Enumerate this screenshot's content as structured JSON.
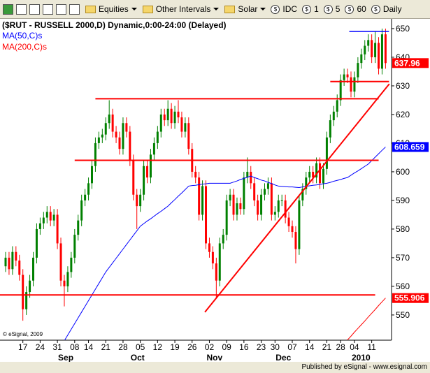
{
  "toolbar": {
    "menus": [
      "Equities",
      "Other Intervals",
      "Solar"
    ],
    "intervals": [
      "IDC",
      "1",
      "5",
      "60",
      "Daily"
    ]
  },
  "chart_data": {
    "type": "candlestick",
    "title": "($RUT - RUSSELL 2000,D) Dynamic,0:00-24:00 (Delayed)",
    "copyright": "© eSignal, 2009",
    "categories": [
      null,
      null,
      null,
      null,
      null,
      "17",
      null,
      null,
      null,
      null,
      "24",
      null,
      null,
      null,
      null,
      "31",
      null,
      null,
      null,
      null,
      "08",
      null,
      null,
      null,
      "14",
      null,
      null,
      null,
      null,
      "21",
      null,
      null,
      null,
      null,
      "28",
      null,
      null,
      null,
      null,
      "05",
      null,
      null,
      null,
      null,
      "12",
      null,
      null,
      null,
      null,
      "19",
      null,
      null,
      null,
      null,
      "26",
      null,
      null,
      null,
      null,
      "02",
      null,
      null,
      null,
      null,
      "09",
      null,
      null,
      null,
      null,
      "16",
      null,
      null,
      null,
      null,
      "23",
      null,
      null,
      null,
      "30",
      null,
      null,
      null,
      null,
      "07",
      null,
      null,
      null,
      null,
      "14",
      null,
      null,
      null,
      null,
      "21",
      null,
      null,
      null,
      "28",
      null,
      null,
      null,
      "04",
      null,
      null,
      null,
      null,
      "11",
      null,
      null,
      null,
      null
    ],
    "months": [
      {
        "label": "Sep",
        "index": 16
      },
      {
        "label": "Oct",
        "index": 37
      },
      {
        "label": "Nov",
        "index": 59
      },
      {
        "label": "Dec",
        "index": 79
      },
      {
        "label": "2010",
        "index": 101
      }
    ],
    "open": [
      567,
      570,
      566,
      572,
      569,
      564,
      552,
      558,
      562,
      570,
      580,
      582,
      584,
      586,
      583,
      585,
      575,
      562,
      560,
      565,
      570,
      578,
      583,
      590,
      592,
      596,
      602,
      610,
      612,
      613,
      617,
      620,
      614,
      612,
      608,
      617,
      614,
      604,
      592,
      588,
      592,
      602,
      598,
      606,
      610,
      614,
      620,
      618,
      622,
      617,
      621,
      619,
      614,
      617,
      608,
      600,
      598,
      585,
      595,
      575,
      572,
      568,
      562,
      575,
      578,
      590,
      592,
      585,
      589,
      587,
      598,
      600,
      596,
      590,
      585,
      592,
      594,
      596,
      585,
      586,
      590,
      590,
      584,
      581,
      579,
      573,
      590,
      594,
      598,
      600,
      598,
      603,
      596,
      601,
      612,
      618,
      621,
      625,
      632,
      634,
      633,
      628,
      633,
      638,
      641,
      644,
      646,
      640,
      645,
      636,
      648
    ],
    "high": [
      572,
      572,
      574,
      574,
      571,
      566,
      560,
      564,
      572,
      582,
      584,
      586,
      588,
      588,
      587,
      587,
      577,
      564,
      567,
      572,
      580,
      585,
      592,
      594,
      598,
      604,
      612,
      614,
      615,
      619,
      625,
      622,
      616,
      614,
      619,
      619,
      616,
      606,
      594,
      594,
      604,
      604,
      608,
      612,
      616,
      622,
      622,
      625,
      624,
      623,
      625,
      621,
      619,
      619,
      610,
      602,
      600,
      597,
      597,
      577,
      574,
      570,
      577,
      580,
      592,
      594,
      594,
      591,
      591,
      600,
      605,
      602,
      598,
      592,
      594,
      596,
      598,
      598,
      588,
      592,
      592,
      592,
      586,
      583,
      581,
      592,
      596,
      600,
      602,
      602,
      605,
      605,
      603,
      614,
      620,
      623,
      627,
      634,
      636,
      636,
      635,
      635,
      640,
      643,
      646,
      648,
      648,
      649,
      647,
      650,
      650
    ],
    "low": [
      565,
      564,
      564,
      567,
      562,
      548,
      550,
      556,
      560,
      568,
      578,
      580,
      582,
      581,
      581,
      573,
      560,
      553,
      558,
      563,
      568,
      576,
      581,
      588,
      590,
      594,
      600,
      608,
      610,
      611,
      615,
      612,
      610,
      606,
      606,
      612,
      602,
      590,
      580,
      586,
      590,
      596,
      596,
      604,
      608,
      612,
      616,
      616,
      615,
      615,
      617,
      612,
      612,
      606,
      598,
      596,
      583,
      583,
      573,
      570,
      566,
      556,
      560,
      573,
      576,
      588,
      583,
      583,
      585,
      585,
      596,
      594,
      588,
      583,
      583,
      590,
      592,
      583,
      583,
      584,
      588,
      582,
      579,
      577,
      568,
      571,
      588,
      592,
      596,
      596,
      596,
      594,
      594,
      599,
      610,
      616,
      619,
      623,
      630,
      631,
      626,
      626,
      631,
      636,
      639,
      642,
      638,
      638,
      634,
      634,
      636
    ],
    "close": [
      570,
      566,
      572,
      569,
      564,
      552,
      558,
      562,
      570,
      580,
      582,
      584,
      586,
      583,
      585,
      575,
      562,
      560,
      565,
      570,
      578,
      583,
      590,
      592,
      596,
      602,
      610,
      612,
      613,
      617,
      620,
      614,
      612,
      608,
      617,
      614,
      604,
      592,
      588,
      592,
      602,
      598,
      606,
      610,
      614,
      620,
      618,
      622,
      617,
      621,
      619,
      614,
      617,
      608,
      600,
      598,
      585,
      595,
      575,
      572,
      568,
      562,
      575,
      578,
      590,
      592,
      585,
      589,
      587,
      598,
      600,
      596,
      590,
      585,
      592,
      594,
      596,
      585,
      586,
      590,
      590,
      584,
      581,
      579,
      573,
      590,
      594,
      598,
      600,
      598,
      603,
      596,
      601,
      612,
      618,
      621,
      625,
      632,
      634,
      633,
      628,
      633,
      638,
      641,
      644,
      646,
      640,
      645,
      636,
      648,
      637.96
    ],
    "up_color": "#008000",
    "down_color": "#ff0000",
    "series": [
      {
        "name": "MA(50,C)s",
        "color": "#0000ff",
        "values": [
          null,
          null,
          null,
          null,
          null,
          null,
          null,
          null,
          null,
          null,
          null,
          null,
          null,
          null,
          null,
          null,
          null,
          541,
          543,
          545,
          547,
          549,
          551,
          553,
          555,
          557,
          559,
          561,
          563,
          565,
          566.6,
          568.2,
          569.8,
          571.4,
          573,
          574.6,
          576.2,
          577.8,
          579.4,
          581,
          581.9,
          582.8,
          583.6,
          584.5,
          585.4,
          586.2,
          587.1,
          588,
          589.2,
          590.3,
          591.5,
          592.6,
          593.8,
          595,
          595.2,
          595.3,
          595.5,
          595.7,
          595.8,
          596,
          596,
          596,
          596,
          596,
          596,
          596,
          596.4,
          596.8,
          597.3,
          597.7,
          598.1,
          598.5,
          598,
          597.6,
          597.1,
          596.8,
          596.3,
          595.9,
          595.4,
          595,
          594.9,
          594.8,
          594.7,
          594.7,
          594.6,
          594.5,
          594.7,
          594.9,
          595.1,
          595.3,
          595.4,
          595.6,
          595.8,
          596,
          596.3,
          596.7,
          597,
          597.3,
          597.7,
          598,
          598.8,
          599.6,
          600.3,
          601.1,
          601.9,
          602.7,
          603.9,
          605.1,
          606.3,
          607.5,
          608.659
        ]
      },
      {
        "name": "MA(200,C)s",
        "color": "#ff0000",
        "values": [
          null,
          null,
          null,
          null,
          null,
          null,
          null,
          null,
          null,
          null,
          null,
          null,
          null,
          null,
          null,
          null,
          null,
          null,
          null,
          null,
          null,
          null,
          null,
          null,
          null,
          null,
          null,
          null,
          null,
          null,
          null,
          null,
          null,
          null,
          null,
          null,
          null,
          null,
          null,
          null,
          null,
          null,
          null,
          null,
          null,
          null,
          null,
          null,
          null,
          null,
          null,
          null,
          null,
          null,
          null,
          null,
          null,
          null,
          null,
          null,
          null,
          null,
          null,
          null,
          null,
          null,
          null,
          null,
          null,
          null,
          null,
          null,
          null,
          null,
          null,
          null,
          null,
          null,
          null,
          null,
          null,
          null,
          null,
          null,
          null,
          null,
          null,
          null,
          null,
          null,
          null,
          null,
          null,
          null,
          null,
          536,
          537.3,
          538.7,
          540,
          541.3,
          542.6,
          544,
          545.3,
          546.6,
          547.9,
          549.3,
          550.6,
          551.9,
          553.3,
          554.6,
          555.906
        ]
      }
    ],
    "lines": [
      {
        "color": "#ff0000",
        "x": [
          26,
          108
        ],
        "y": [
          625.5,
          625.5
        ]
      },
      {
        "color": "#ff0000",
        "x": [
          20,
          108
        ],
        "y": [
          604,
          604
        ]
      },
      {
        "color": "#ff0000",
        "x": [
          -2,
          107
        ],
        "y": [
          557,
          557
        ]
      },
      {
        "color": "#ff0000",
        "x": [
          94,
          111
        ],
        "y": [
          631.5,
          631.5
        ]
      },
      {
        "color": "#0000ff",
        "x": [
          99.5,
          111
        ],
        "y": [
          649,
          649
        ]
      },
      {
        "color": "#ff0000",
        "x": [
          57.7,
          111.1
        ],
        "y": [
          551,
          630.7
        ]
      }
    ],
    "ylim": [
      541.2,
      653.4
    ],
    "yticks": [
      550,
      560,
      570,
      580,
      590,
      600,
      610,
      620,
      630,
      640,
      650
    ]
  },
  "footer": "Published by eSignal - www.esignal.com"
}
